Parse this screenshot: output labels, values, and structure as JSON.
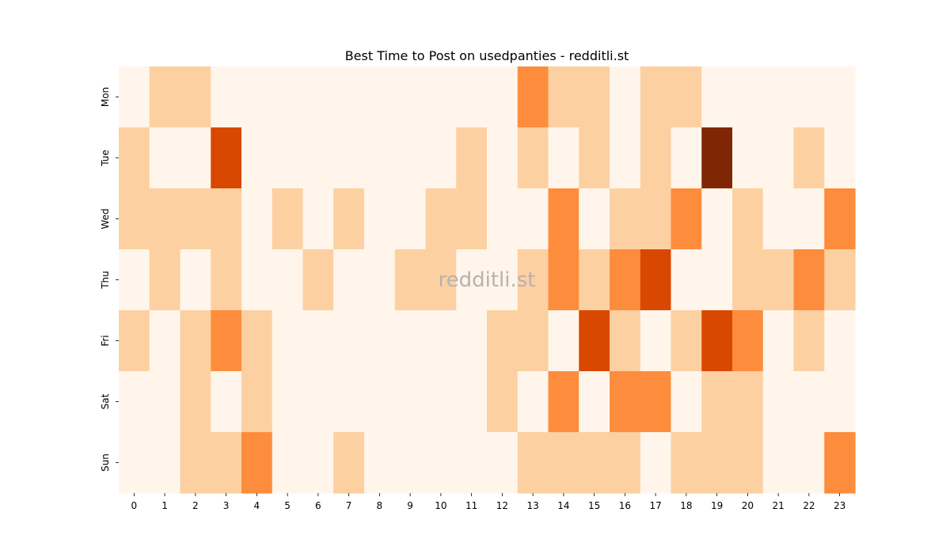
{
  "chart_data": {
    "type": "heatmap",
    "title": "Best Time to Post on usedpanties - redditli.st",
    "watermark": "redditli.st",
    "xlabel": "",
    "ylabel": "",
    "x_categories": [
      "0",
      "1",
      "2",
      "3",
      "4",
      "5",
      "6",
      "7",
      "8",
      "9",
      "10",
      "11",
      "12",
      "13",
      "14",
      "15",
      "16",
      "17",
      "18",
      "19",
      "20",
      "21",
      "22",
      "23"
    ],
    "y_categories": [
      "Mon",
      "Tue",
      "Wed",
      "Thu",
      "Fri",
      "Sat",
      "Sun"
    ],
    "values": [
      [
        0,
        1,
        1,
        0,
        0,
        0,
        0,
        0,
        0,
        0,
        0,
        0,
        0,
        2,
        1,
        1,
        0,
        1,
        1,
        0,
        0,
        0,
        0,
        0
      ],
      [
        1,
        0,
        0,
        3,
        0,
        0,
        0,
        0,
        0,
        0,
        0,
        1,
        0,
        1,
        0,
        1,
        0,
        1,
        0,
        4,
        0,
        0,
        1,
        0
      ],
      [
        1,
        1,
        1,
        1,
        0,
        1,
        0,
        1,
        0,
        0,
        1,
        1,
        0,
        0,
        2,
        0,
        1,
        1,
        2,
        0,
        1,
        0,
        0,
        2
      ],
      [
        0,
        1,
        0,
        1,
        0,
        0,
        1,
        0,
        0,
        1,
        1,
        0,
        0,
        1,
        2,
        1,
        2,
        3,
        0,
        0,
        1,
        1,
        2,
        1
      ],
      [
        1,
        0,
        1,
        2,
        1,
        0,
        0,
        0,
        0,
        0,
        0,
        0,
        1,
        1,
        0,
        3,
        1,
        0,
        1,
        3,
        2,
        0,
        1,
        0
      ],
      [
        0,
        0,
        1,
        0,
        1,
        0,
        0,
        0,
        0,
        0,
        0,
        0,
        1,
        0,
        2,
        0,
        2,
        2,
        0,
        1,
        1,
        0,
        0,
        0
      ],
      [
        0,
        0,
        1,
        1,
        2,
        0,
        0,
        1,
        0,
        0,
        0,
        0,
        0,
        1,
        1,
        1,
        1,
        0,
        1,
        1,
        1,
        0,
        0,
        2
      ]
    ],
    "value_range": [
      0,
      4
    ],
    "colormap": "Oranges",
    "level_colors": [
      "#fff5eb",
      "#fdd0a2",
      "#fd8d3c",
      "#d94801",
      "#7f2704"
    ],
    "colorbar": false
  }
}
